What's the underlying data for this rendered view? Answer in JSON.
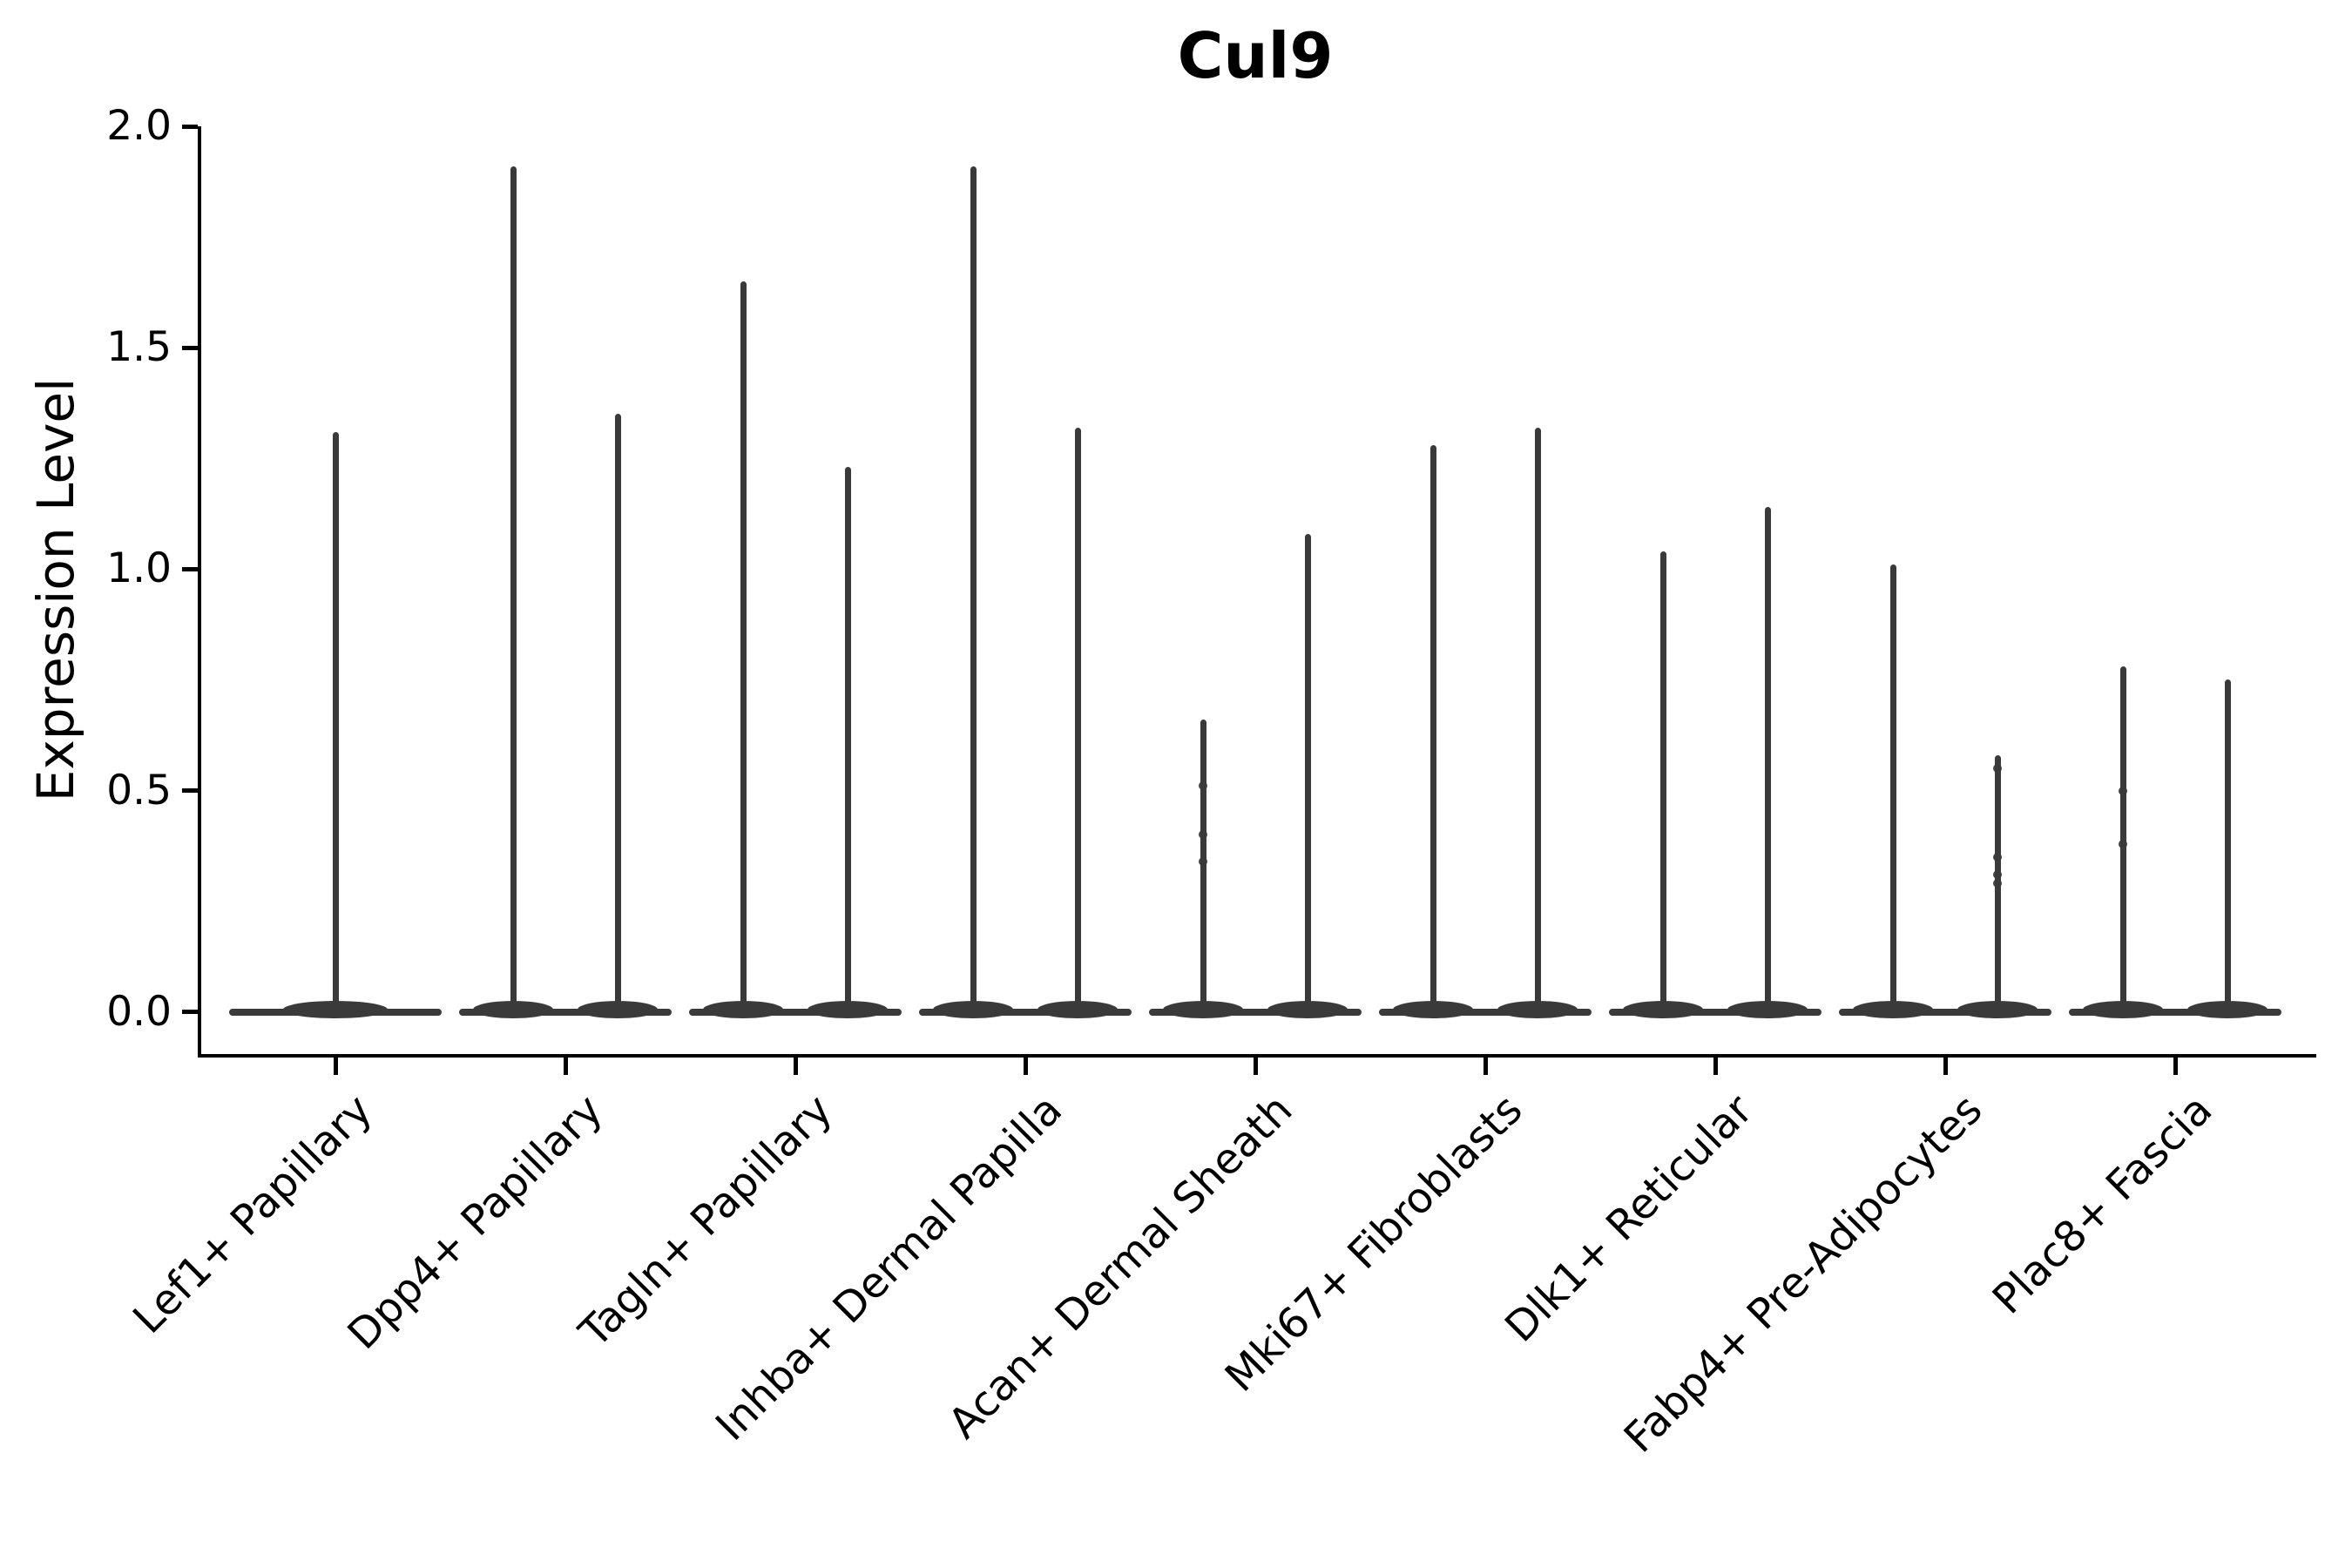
{
  "title": "Cul9",
  "y_axis": {
    "label": "Expression Level",
    "tick_labels": [
      "0.0",
      "0.5",
      "1.0",
      "1.5",
      "2.0"
    ]
  },
  "chart_data": {
    "type": "violin",
    "title": "Cul9",
    "xlabel": "",
    "ylabel": "Expression Level",
    "ylim": [
      -0.095,
      2.0
    ],
    "yticks": [
      0.0,
      0.5,
      1.0,
      1.5,
      2.0
    ],
    "grid": false,
    "legend": "none",
    "line_color": "#3a3a3a",
    "axis_color": "#000000",
    "categories": [
      "Lef1+ Papillary",
      "Dpp4+ Papillary",
      "Tagln+ Papillary",
      "Inhba+ Dermal Papilla",
      "Acan+ Dermal Sheath",
      "Mki67+ Fibroblasts",
      "Dlk1+ Reticular",
      "Fabp4+ Pre-Adipocytes",
      "Plac8+ Fascia"
    ],
    "violins": [
      {
        "category": "Lef1+ Papillary",
        "baseline": 0.0,
        "spike_max": [
          1.31
        ]
      },
      {
        "category": "Dpp4+ Papillary",
        "baseline": 0.0,
        "spike_max": [
          1.91,
          1.35
        ]
      },
      {
        "category": "Tagln+ Papillary",
        "baseline": 0.0,
        "spike_max": [
          1.65,
          1.23
        ]
      },
      {
        "category": "Inhba+ Dermal Papilla",
        "baseline": 0.0,
        "spike_max": [
          1.91,
          1.32
        ]
      },
      {
        "category": "Acan+ Dermal Sheath",
        "baseline": 0.0,
        "spike_max": [
          0.66,
          1.08
        ]
      },
      {
        "category": "Mki67+ Fibroblasts",
        "baseline": 0.0,
        "spike_max": [
          1.28,
          1.32
        ]
      },
      {
        "category": "Dlk1+ Reticular",
        "baseline": 0.0,
        "spike_max": [
          1.04,
          1.14
        ]
      },
      {
        "category": "Fabp4+ Pre-Adipocytes",
        "baseline": 0.0,
        "spike_max": [
          1.01,
          0.58
        ]
      },
      {
        "category": "Plac8+ Fascia",
        "baseline": 0.0,
        "spike_max": [
          0.78,
          0.75
        ]
      }
    ],
    "point_overlays": [
      {
        "category_index": 4,
        "spike_index": 0,
        "values": [
          0.51,
          0.4,
          0.34
        ]
      },
      {
        "category_index": 7,
        "spike_index": 1,
        "values": [
          0.55,
          0.35,
          0.31,
          0.29
        ]
      },
      {
        "category_index": 8,
        "spike_index": 0,
        "values": [
          0.5,
          0.38
        ]
      }
    ]
  }
}
